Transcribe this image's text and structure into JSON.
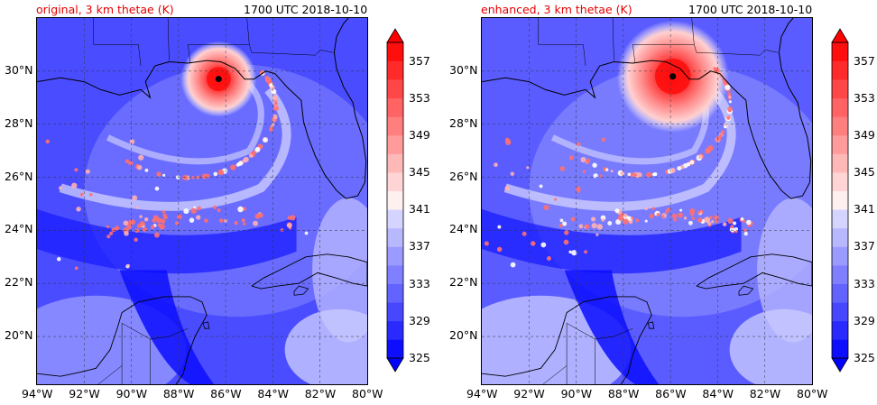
{
  "panels": [
    {
      "id": "original",
      "title": "original, 3 km thetae (K)",
      "time": "1700 UTC 2018-10-10",
      "storm_center": {
        "lon": -86.3,
        "lat": 29.7
      }
    },
    {
      "id": "enhanced",
      "title": "enhanced, 3 km thetae (K)",
      "time": "1700 UTC 2018-10-10",
      "storm_center": {
        "lon": -85.9,
        "lat": 29.8
      }
    }
  ],
  "axes": {
    "lon_ticks": [
      "94°W",
      "92°W",
      "90°W",
      "88°W",
      "86°W",
      "84°W",
      "82°W",
      "80°W"
    ],
    "lat_ticks": [
      "20°N",
      "22°N",
      "24°N",
      "26°N",
      "28°N",
      "30°N"
    ],
    "lon_range": [
      -94,
      -80
    ],
    "lat_range": [
      18.2,
      32.0
    ],
    "gridlines": true
  },
  "colorbar": {
    "labels": [
      "357",
      "353",
      "349",
      "345",
      "341",
      "337",
      "333",
      "329",
      "325"
    ],
    "min": 325,
    "max": 359,
    "step": 2,
    "colors": {
      "low": "#0000ff",
      "mid": "#ffffff",
      "high": "#ff0000"
    }
  }
}
